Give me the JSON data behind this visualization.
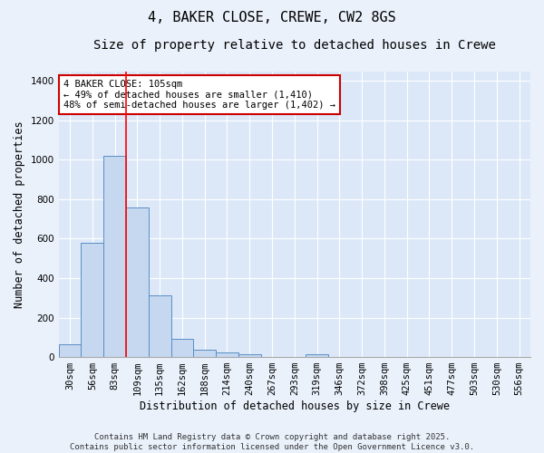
{
  "title_line1": "4, BAKER CLOSE, CREWE, CW2 8GS",
  "title_line2": "Size of property relative to detached houses in Crewe",
  "xlabel": "Distribution of detached houses by size in Crewe",
  "ylabel": "Number of detached properties",
  "bar_color": "#c5d8f0",
  "bar_edge_color": "#5b8ec4",
  "background_color": "#dce8f8",
  "fig_background_color": "#eaf1fb",
  "grid_color": "#ffffff",
  "categories": [
    "30sqm",
    "56sqm",
    "83sqm",
    "109sqm",
    "135sqm",
    "162sqm",
    "188sqm",
    "214sqm",
    "240sqm",
    "267sqm",
    "293sqm",
    "319sqm",
    "346sqm",
    "372sqm",
    "398sqm",
    "425sqm",
    "451sqm",
    "477sqm",
    "503sqm",
    "530sqm",
    "556sqm"
  ],
  "values": [
    65,
    580,
    1020,
    760,
    315,
    90,
    38,
    22,
    14,
    0,
    0,
    14,
    0,
    0,
    0,
    0,
    0,
    0,
    0,
    0,
    0
  ],
  "ylim": [
    0,
    1450
  ],
  "yticks": [
    0,
    200,
    400,
    600,
    800,
    1000,
    1200,
    1400
  ],
  "red_line_bin_index": 3,
  "annotation_text": "4 BAKER CLOSE: 105sqm\n← 49% of detached houses are smaller (1,410)\n48% of semi-detached houses are larger (1,402) →",
  "annotation_box_facecolor": "#ffffff",
  "annotation_box_edgecolor": "#cc0000",
  "footer_line1": "Contains HM Land Registry data © Crown copyright and database right 2025.",
  "footer_line2": "Contains public sector information licensed under the Open Government Licence v3.0.",
  "title_fontsize": 11,
  "subtitle_fontsize": 10,
  "axis_label_fontsize": 8.5,
  "tick_fontsize": 7.5,
  "annotation_fontsize": 7.5,
  "footer_fontsize": 6.5
}
